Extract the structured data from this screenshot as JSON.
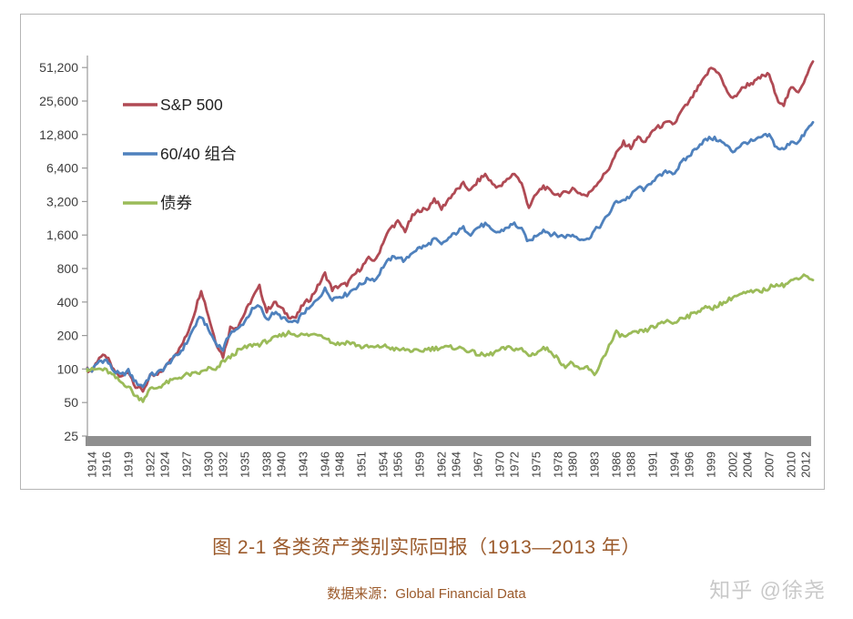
{
  "caption": "图 2-1 各类资产类别实际回报（1913—2013 年）",
  "source": "数据来源：Global Financial Data",
  "watermark": "知乎 @徐尧",
  "colors": {
    "sp500": "#b04a54",
    "portfolio6040": "#4f81bd",
    "bonds": "#9bbb59",
    "axis": "#9a9a9a",
    "baseline_bar": "#8f8f8f",
    "caption_brown": "#9b5a2b",
    "watermark_gray": "#c9c9c9"
  },
  "legend": [
    {
      "label": "S&P 500",
      "color": "#b04a54"
    },
    {
      "label": "60/40 组合",
      "color": "#4f81bd"
    },
    {
      "label": "债券",
      "color": "#9bbb59"
    }
  ],
  "chart_data": {
    "type": "line",
    "title": "图 2-1 各类资产类别实际回报（1913—2013 年）",
    "xlabel": "",
    "ylabel": "",
    "y_scale": "log2",
    "ylim": [
      25,
      51200
    ],
    "grid": false,
    "legend_position": "upper-left",
    "x_start": 1913,
    "x_end": 2013,
    "y_ticks": [
      "25",
      "50",
      "100",
      "200",
      "400",
      "800",
      "1,600",
      "3,200",
      "6,400",
      "12,800",
      "25,600",
      "51,200"
    ],
    "x_ticks": [
      "1914",
      "1916",
      "1919",
      "1922",
      "1924",
      "1927",
      "1930",
      "1932",
      "1935",
      "1938",
      "1940",
      "1943",
      "1946",
      "1948",
      "1951",
      "1954",
      "1956",
      "1959",
      "1962",
      "1964",
      "1967",
      "1970",
      "1972",
      "1975",
      "1978",
      "1980",
      "1983",
      "1986",
      "1988",
      "1991",
      "1994",
      "1996",
      "1999",
      "2002",
      "2004",
      "2007",
      "2010",
      "2012"
    ],
    "series": [
      {
        "name": "S&P 500",
        "color": "#b04a54",
        "values": [
          100,
          96,
          128,
          130,
          96,
          84,
          96,
          70,
          64,
          86,
          88,
          102,
          128,
          150,
          200,
          310,
          520,
          300,
          175,
          130,
          235,
          240,
          320,
          430,
          550,
          330,
          400,
          350,
          300,
          290,
          380,
          430,
          550,
          720,
          520,
          560,
          580,
          700,
          820,
          980,
          950,
          1400,
          1850,
          2100,
          1750,
          2350,
          2700,
          2700,
          3400,
          2750,
          3400,
          4000,
          4600,
          4000,
          4900,
          5600,
          4600,
          4300,
          5000,
          5800,
          4600,
          2850,
          3700,
          4400,
          3900,
          3700,
          3800,
          4200,
          3800,
          3600,
          4400,
          5200,
          6400,
          8600,
          10800,
          9800,
          12200,
          10800,
          14000,
          15200,
          16300,
          16000,
          21000,
          25000,
          32000,
          40000,
          51000,
          47000,
          33000,
          26500,
          32000,
          36000,
          38000,
          42500,
          44500,
          27000,
          24000,
          33500,
          31500,
          41000,
          58000
        ]
      },
      {
        "name": "60/40 组合",
        "color": "#4f81bd",
        "values": [
          100,
          97,
          118,
          120,
          96,
          88,
          96,
          76,
          70,
          88,
          92,
          103,
          122,
          138,
          172,
          235,
          300,
          225,
          172,
          150,
          215,
          225,
          270,
          340,
          370,
          280,
          320,
          295,
          265,
          260,
          320,
          355,
          430,
          520,
          430,
          450,
          470,
          530,
          580,
          650,
          640,
          840,
          980,
          1030,
          930,
          1130,
          1230,
          1280,
          1480,
          1300,
          1500,
          1680,
          1850,
          1650,
          1880,
          2000,
          1720,
          1700,
          1880,
          2020,
          1780,
          1380,
          1600,
          1780,
          1640,
          1580,
          1560,
          1600,
          1500,
          1450,
          1750,
          2000,
          2500,
          3200,
          3300,
          3600,
          4300,
          4100,
          5000,
          5400,
          6000,
          5800,
          7200,
          8200,
          9800,
          11200,
          11900,
          11500,
          10300,
          9000,
          10200,
          11000,
          11200,
          12200,
          12600,
          9800,
          9300,
          11200,
          10800,
          13500,
          16500
        ]
      },
      {
        "name": "债券",
        "color": "#9bbb59",
        "values": [
          100,
          98,
          100,
          97,
          86,
          76,
          70,
          57,
          53,
          66,
          68,
          74,
          79,
          84,
          89,
          90,
          93,
          102,
          96,
          118,
          128,
          145,
          155,
          165,
          167,
          178,
          188,
          200,
          212,
          205,
          202,
          202,
          208,
          196,
          172,
          168,
          175,
          168,
          158,
          158,
          156,
          162,
          155,
          148,
          150,
          146,
          143,
          152,
          153,
          157,
          156,
          156,
          152,
          144,
          136,
          132,
          138,
          148,
          155,
          152,
          150,
          132,
          140,
          154,
          146,
          122,
          106,
          114,
          96,
          105,
          87,
          120,
          160,
          212,
          195,
          205,
          215,
          220,
          240,
          250,
          275,
          255,
          295,
          300,
          325,
          360,
          345,
          380,
          400,
          445,
          465,
          485,
          495,
          505,
          535,
          590,
          565,
          615,
          670,
          700,
          630
        ]
      }
    ]
  }
}
